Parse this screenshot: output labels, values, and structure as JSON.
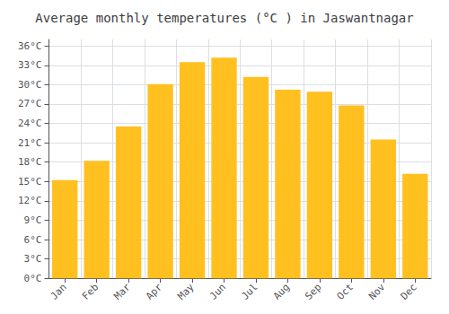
{
  "chart_data": {
    "type": "bar",
    "title": "Average monthly temperatures (°C ) in Jaswantnagar",
    "categories": [
      "Jan",
      "Feb",
      "Mar",
      "Apr",
      "May",
      "Jun",
      "Jul",
      "Aug",
      "Sep",
      "Oct",
      "Nov",
      "Dec"
    ],
    "values": [
      15.2,
      18.2,
      23.5,
      30.1,
      33.5,
      34.2,
      31.2,
      29.2,
      28.9,
      26.8,
      21.5,
      16.2
    ],
    "color": "#FFC020",
    "ylim": [
      0,
      37
    ],
    "yticks": [
      {
        "value": 0,
        "label": "0°C"
      },
      {
        "value": 3,
        "label": "3°C"
      },
      {
        "value": 6,
        "label": "6°C"
      },
      {
        "value": 9,
        "label": "9°C"
      },
      {
        "value": 12,
        "label": "12°C"
      },
      {
        "value": 15,
        "label": "15°C"
      },
      {
        "value": 18,
        "label": "18°C"
      },
      {
        "value": 21,
        "label": "21°C"
      },
      {
        "value": 24,
        "label": "24°C"
      },
      {
        "value": 27,
        "label": "27°C"
      },
      {
        "value": 30,
        "label": "30°C"
      },
      {
        "value": 33,
        "label": "33°C"
      },
      {
        "value": 36,
        "label": "36°C"
      }
    ],
    "grid": true
  }
}
